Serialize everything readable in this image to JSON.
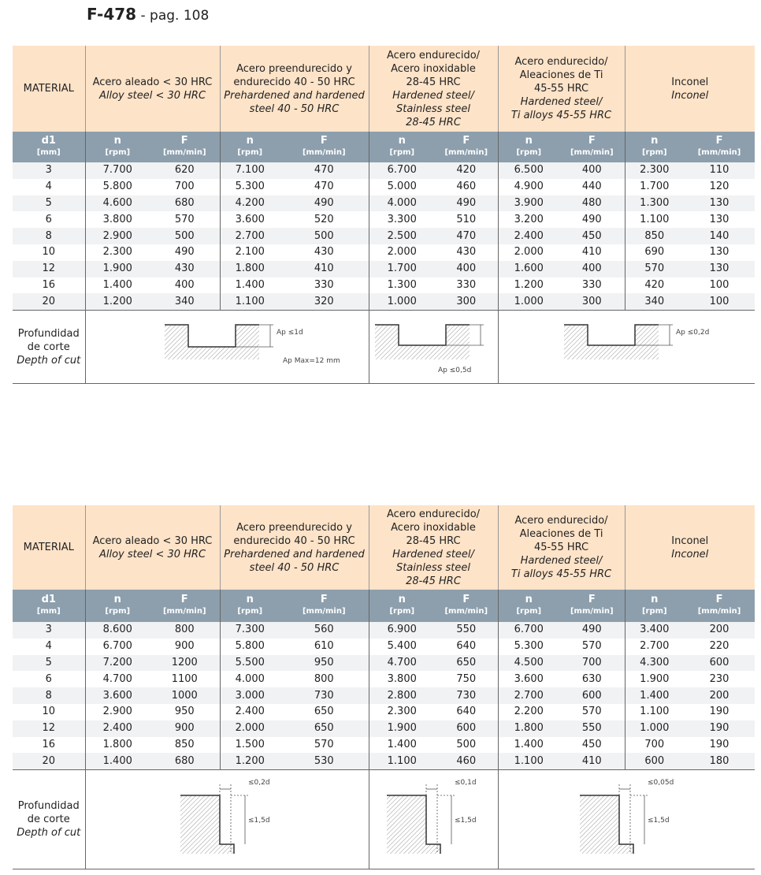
{
  "header": {
    "code": "F-478",
    "page": "- pag. 108"
  },
  "tables": [
    {
      "material_label": "MATERIAL",
      "groups": [
        {
          "lines": [
            "Acero aleado < 30 HRC"
          ],
          "italic_lines": [
            "Alloy steel < 30 HRC"
          ]
        },
        {
          "lines": [
            "Acero preendurecido y",
            "endurecido 40 - 50 HRC"
          ],
          "italic_lines": [
            "Prehardened and hardened",
            "steel 40 - 50 HRC"
          ]
        },
        {
          "lines": [
            "Acero endurecido/",
            "Acero inoxidable",
            "28-45 HRC"
          ],
          "italic_lines": [
            "Hardened steel/",
            "Stainless steel",
            "28-45 HRC"
          ]
        },
        {
          "lines": [
            "Acero endurecido/",
            "Aleaciones de Ti",
            "45-55 HRC"
          ],
          "italic_lines": [
            "Hardened steel/",
            "Ti alloys 45-55 HRC"
          ]
        },
        {
          "lines": [
            "Inconel"
          ],
          "italic_lines": [
            "Inconel"
          ]
        }
      ],
      "d1": "d1",
      "d1_unit": "[mm]",
      "n": "n",
      "n_unit": "[rpm]",
      "F": "F",
      "F_unit": "[mm/min]",
      "rows": [
        [
          "3",
          "7.700",
          "620",
          "7.100",
          "470",
          "6.700",
          "420",
          "6.500",
          "400",
          "2.300",
          "110"
        ],
        [
          "4",
          "5.800",
          "700",
          "5.300",
          "470",
          "5.000",
          "460",
          "4.900",
          "440",
          "1.700",
          "120"
        ],
        [
          "5",
          "4.600",
          "680",
          "4.200",
          "490",
          "4.000",
          "490",
          "3.900",
          "480",
          "1.300",
          "130"
        ],
        [
          "6",
          "3.800",
          "570",
          "3.600",
          "520",
          "3.300",
          "510",
          "3.200",
          "490",
          "1.100",
          "130"
        ],
        [
          "8",
          "2.900",
          "500",
          "2.700",
          "500",
          "2.500",
          "470",
          "2.400",
          "450",
          "850",
          "140"
        ],
        [
          "10",
          "2.300",
          "490",
          "2.100",
          "430",
          "2.000",
          "430",
          "2.000",
          "410",
          "690",
          "130"
        ],
        [
          "12",
          "1.900",
          "430",
          "1.800",
          "410",
          "1.700",
          "400",
          "1.600",
          "400",
          "570",
          "130"
        ],
        [
          "16",
          "1.400",
          "400",
          "1.400",
          "330",
          "1.300",
          "330",
          "1.200",
          "330",
          "420",
          "100"
        ],
        [
          "20",
          "1.200",
          "340",
          "1.100",
          "320",
          "1.000",
          "300",
          "1.000",
          "300",
          "340",
          "100"
        ]
      ],
      "depth_label": [
        "Profundidad",
        "de corte"
      ],
      "depth_label_en": "Depth of cut",
      "diagrams": [
        {
          "labels": [
            "Ap ≤1d",
            "Ap Max=12 mm"
          ]
        },
        {
          "labels": [
            "Ap ≤0,5d"
          ]
        },
        {
          "labels": [
            "Ap ≤0,2d"
          ]
        }
      ]
    },
    {
      "material_label": "MATERIAL",
      "groups": [
        {
          "lines": [
            "Acero aleado < 30 HRC"
          ],
          "italic_lines": [
            "Alloy steel < 30 HRC"
          ]
        },
        {
          "lines": [
            "Acero preendurecido y",
            "endurecido 40 - 50 HRC"
          ],
          "italic_lines": [
            "Prehardened and hardened",
            "steel 40 - 50 HRC"
          ]
        },
        {
          "lines": [
            "Acero endurecido/",
            "Acero inoxidable",
            "28-45 HRC"
          ],
          "italic_lines": [
            "Hardened steel/",
            "Stainless steel",
            "28-45 HRC"
          ]
        },
        {
          "lines": [
            "Acero endurecido/",
            "Aleaciones de Ti",
            "45-55 HRC"
          ],
          "italic_lines": [
            "Hardened steel/",
            "Ti alloys 45-55 HRC"
          ]
        },
        {
          "lines": [
            "Inconel"
          ],
          "italic_lines": [
            "Inconel"
          ]
        }
      ],
      "d1": "d1",
      "d1_unit": "[mm]",
      "n": "n",
      "n_unit": "[rpm]",
      "F": "F",
      "F_unit": "[mm/min]",
      "rows": [
        [
          "3",
          "8.600",
          "800",
          "7.300",
          "560",
          "6.900",
          "550",
          "6.700",
          "490",
          "3.400",
          "200"
        ],
        [
          "4",
          "6.700",
          "900",
          "5.800",
          "610",
          "5.400",
          "640",
          "5.300",
          "570",
          "2.700",
          "220"
        ],
        [
          "5",
          "7.200",
          "1200",
          "5.500",
          "950",
          "4.700",
          "650",
          "4.500",
          "700",
          "4.300",
          "600"
        ],
        [
          "6",
          "4.700",
          "1100",
          "4.000",
          "800",
          "3.800",
          "750",
          "3.600",
          "630",
          "1.900",
          "230"
        ],
        [
          "8",
          "3.600",
          "1000",
          "3.000",
          "730",
          "2.800",
          "730",
          "2.700",
          "600",
          "1.400",
          "200"
        ],
        [
          "10",
          "2.900",
          "950",
          "2.400",
          "650",
          "2.300",
          "640",
          "2.200",
          "570",
          "1.100",
          "190"
        ],
        [
          "12",
          "2.400",
          "900",
          "2.000",
          "650",
          "1.900",
          "600",
          "1.800",
          "550",
          "1.000",
          "190"
        ],
        [
          "16",
          "1.800",
          "850",
          "1.500",
          "570",
          "1.400",
          "500",
          "1.400",
          "450",
          "700",
          "190"
        ],
        [
          "20",
          "1.400",
          "680",
          "1.200",
          "530",
          "1.100",
          "460",
          "1.100",
          "410",
          "600",
          "180"
        ]
      ],
      "depth_label": [
        "Profundidad",
        "de corte"
      ],
      "depth_label_en": "Depth of cut",
      "diagrams": [
        {
          "labels": [
            "≤0,2d",
            "≤1,5d"
          ]
        },
        {
          "labels": [
            "≤0,1d",
            "≤1,5d"
          ]
        },
        {
          "labels": [
            "≤0,05d",
            "≤1,5d"
          ]
        }
      ]
    }
  ]
}
